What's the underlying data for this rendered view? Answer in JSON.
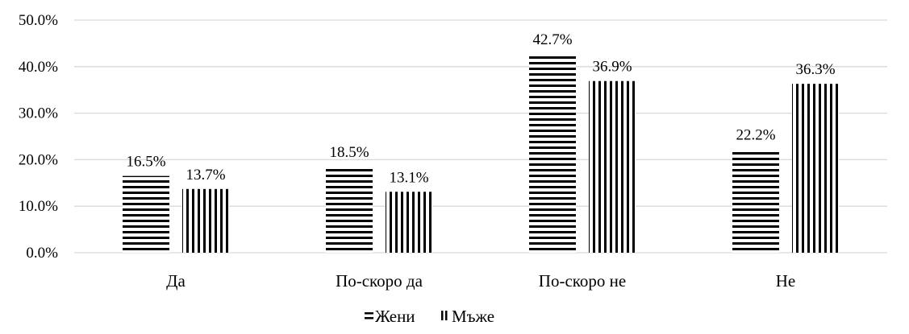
{
  "chart_data": {
    "type": "bar",
    "title": "",
    "xlabel": "",
    "ylabel": "",
    "ylim": [
      0,
      50
    ],
    "yticks": [
      0,
      10,
      20,
      30,
      40,
      50
    ],
    "ytick_labels": [
      "0.0%",
      "10.0%",
      "20.0%",
      "30.0%",
      "40.0%",
      "50.0%"
    ],
    "categories": [
      "Да",
      "По-скоро да",
      "По-скоро не",
      "Не"
    ],
    "series": [
      {
        "name": "Жени",
        "pattern": "horizontal-lines",
        "values": [
          16.5,
          18.5,
          42.7,
          22.2
        ],
        "labels": [
          "16.5%",
          "18.5%",
          "42.7%",
          "22.2%"
        ]
      },
      {
        "name": "Мъже",
        "pattern": "vertical-lines",
        "values": [
          13.7,
          13.1,
          36.9,
          36.3
        ],
        "labels": [
          "13.7%",
          "13.1%",
          "36.9%",
          "36.3%"
        ]
      }
    ],
    "grid": true,
    "legend_position": "bottom",
    "colors": {
      "bar_stroke": "#000000",
      "gridline": "#d9d9d9",
      "axis": "#d9d9d9",
      "background": "#ffffff"
    }
  }
}
